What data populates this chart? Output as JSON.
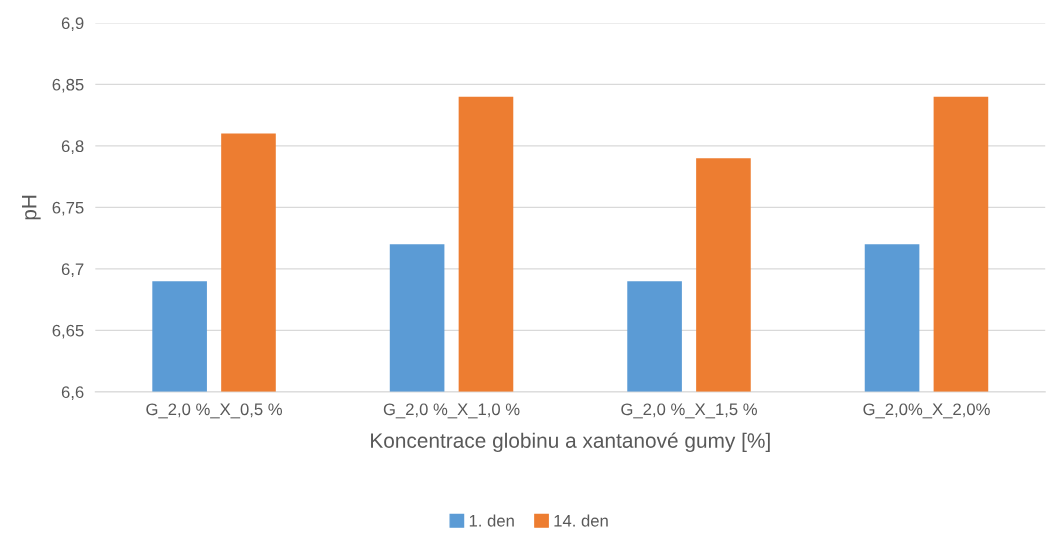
{
  "chart_data": {
    "type": "bar",
    "xlabel": "Koncentrace globinu a xantanové gumy [%]",
    "ylabel": "pH",
    "categories": [
      "G_2,0 %_X_0,5 %",
      "G_2,0 %_X_1,0 %",
      "G_2,0 %_X_1,5 %",
      "G_2,0%_X_2,0%"
    ],
    "series": [
      {
        "name": "1. den",
        "color": "#5b9bd5",
        "values": [
          6.69,
          6.72,
          6.69,
          6.72
        ]
      },
      {
        "name": "14. den",
        "color": "#ed7d31",
        "values": [
          6.81,
          6.84,
          6.79,
          6.84
        ]
      }
    ],
    "ylim": [
      6.6,
      6.9
    ],
    "yticks": [
      {
        "value": 6.6,
        "label": "6,6"
      },
      {
        "value": 6.65,
        "label": "6,65"
      },
      {
        "value": 6.7,
        "label": "6,7"
      },
      {
        "value": 6.75,
        "label": "6,75"
      },
      {
        "value": 6.8,
        "label": "6,8"
      },
      {
        "value": 6.85,
        "label": "6,85"
      },
      {
        "value": 6.9,
        "label": "6,9"
      }
    ],
    "grid": "y",
    "legend": "bottom"
  }
}
